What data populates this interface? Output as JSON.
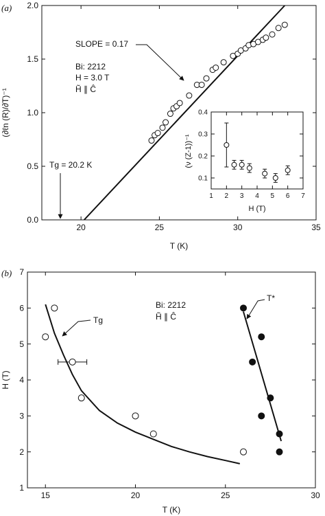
{
  "chart_data": [
    {
      "type": "scatter",
      "panel_label": "(a)",
      "xlabel": "T (K)",
      "ylabel": "(∂ℓn (R)/∂T)⁻¹",
      "xlim": [
        17.5,
        35
      ],
      "ylim": [
        0,
        2.0
      ],
      "xticks": [
        "20",
        "25",
        "30",
        "35"
      ],
      "yticks": [
        "0.0",
        "0.5",
        "1.0",
        "1.5",
        "2.0"
      ],
      "annotations": {
        "slope": "SLOPE = 0.17",
        "sample": "Bi: 2212",
        "field": "H = 3.0 T",
        "orientation": "H̃ ∥ Ĉ",
        "tg": "Tg = 20.2 K"
      },
      "series": [
        {
          "marker": "open-circle",
          "x": [
            24.5,
            24.7,
            24.9,
            25.2,
            25.4,
            25.7,
            25.9,
            26.1,
            26.3,
            26.9,
            27.4,
            27.7,
            28.0,
            28.4,
            28.6,
            29.1,
            29.7,
            30.0,
            30.2,
            30.5,
            30.7,
            31.0,
            31.3,
            31.6,
            31.8,
            32.2,
            32.6,
            33.0
          ],
          "y": [
            0.74,
            0.79,
            0.81,
            0.86,
            0.91,
            0.99,
            1.04,
            1.06,
            1.09,
            1.16,
            1.26,
            1.26,
            1.32,
            1.4,
            1.42,
            1.47,
            1.53,
            1.55,
            1.58,
            1.6,
            1.63,
            1.64,
            1.66,
            1.68,
            1.7,
            1.73,
            1.79,
            1.82
          ]
        },
        {
          "type": "line",
          "x": [
            20.2,
            33.0
          ],
          "y": [
            0.0,
            2.18
          ]
        }
      ],
      "inset": {
        "type": "scatter-errorbar",
        "xlabel": "H (T)",
        "ylabel": "(ν (Z-1))⁻¹",
        "xlim": [
          1,
          7
        ],
        "ylim": [
          0.05,
          0.4
        ],
        "xticks": [
          "1",
          "2",
          "3",
          "4",
          "5",
          "6",
          "7"
        ],
        "yticks": [
          "0.1",
          "0.2",
          "0.3",
          "0.4"
        ],
        "x": [
          2.0,
          2.5,
          3.0,
          3.5,
          4.5,
          5.2,
          6.0
        ],
        "y": [
          0.25,
          0.16,
          0.16,
          0.145,
          0.12,
          0.1,
          0.135
        ],
        "err": [
          0.1,
          0.02,
          0.02,
          0.02,
          0.02,
          0.02,
          0.02
        ]
      }
    },
    {
      "type": "scatter",
      "panel_label": "(b)",
      "xlabel": "T (K)",
      "ylabel": "H (T)",
      "xlim": [
        14,
        30
      ],
      "ylim": [
        1,
        7
      ],
      "xticks": [
        "15",
        "20",
        "25",
        "30"
      ],
      "yticks": [
        "1",
        "2",
        "3",
        "4",
        "5",
        "6",
        "7"
      ],
      "annotations": {
        "sample": "Bi: 2212",
        "orientation": "H̃ ∥ Ĉ",
        "tg": "Tg",
        "tstar": "T*"
      },
      "series": [
        {
          "name": "Tg",
          "marker": "open-circle",
          "x": [
            15.0,
            15.5,
            16.5,
            17.0,
            20.0,
            21.0,
            26.0
          ],
          "y": [
            5.2,
            6.0,
            4.5,
            3.5,
            3.0,
            2.5,
            2.0
          ],
          "xerr": [
            0,
            0,
            0.8,
            0,
            0,
            0,
            0
          ]
        },
        {
          "name": "T*",
          "marker": "filled-circle",
          "x": [
            26.0,
            26.5,
            27.0,
            27.0,
            27.5,
            28.0,
            28.0
          ],
          "y": [
            6.0,
            4.5,
            5.2,
            3.0,
            3.5,
            2.5,
            2.0
          ]
        },
        {
          "name": "Tg fit",
          "type": "line",
          "x": [
            15.0,
            15.5,
            16.0,
            16.5,
            17.0,
            18.0,
            19.0,
            20.0,
            21.0,
            22.0,
            23.0,
            24.0,
            25.0,
            25.8
          ],
          "y": [
            6.1,
            5.3,
            4.7,
            4.15,
            3.7,
            3.15,
            2.8,
            2.55,
            2.35,
            2.15,
            2.0,
            1.87,
            1.76,
            1.67
          ]
        },
        {
          "name": "T* fit",
          "type": "line",
          "x": [
            26.0,
            28.1
          ],
          "y": [
            5.9,
            2.3
          ]
        }
      ]
    }
  ]
}
